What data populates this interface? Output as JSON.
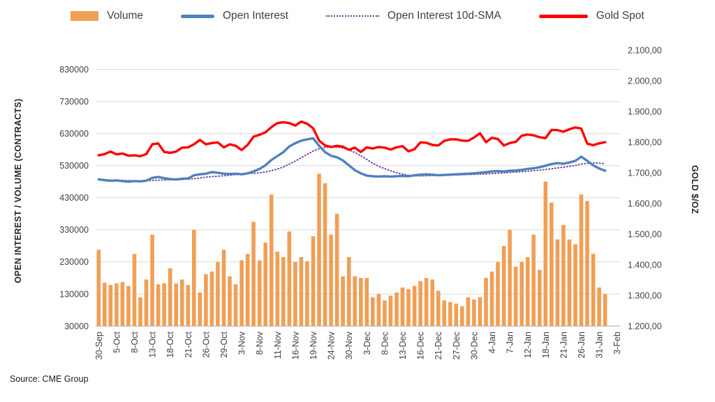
{
  "source_note": "Source: CME Group",
  "chart_data": {
    "type": "bar",
    "title": "",
    "ylabel_left": "OPEN INTEREST / VOLUME (CONTRACTS)",
    "ylabel_right": "GOLD $/OZ",
    "x_tick_step": 3,
    "grid": "horizontal",
    "legend_position": "top",
    "left_axis": {
      "min": 30000,
      "max": 890000,
      "ticks": [
        {
          "label": "30000",
          "value": 30000
        },
        {
          "label": "130000",
          "value": 130000
        },
        {
          "label": "230000",
          "value": 230000
        },
        {
          "label": "330000",
          "value": 330000
        },
        {
          "label": "430000",
          "value": 430000
        },
        {
          "label": "530000",
          "value": 530000
        },
        {
          "label": "630000",
          "value": 630000
        },
        {
          "label": "730000",
          "value": 730000
        },
        {
          "label": "830000",
          "value": 830000
        }
      ]
    },
    "right_axis": {
      "min": 1200,
      "max": 2100,
      "ticks": [
        {
          "label": "1.200,00",
          "value": 1200
        },
        {
          "label": "1.300,00",
          "value": 1300
        },
        {
          "label": "1.400,00",
          "value": 1400
        },
        {
          "label": "1.500,00",
          "value": 1500
        },
        {
          "label": "1.600,00",
          "value": 1600
        },
        {
          "label": "1.700,00",
          "value": 1700
        },
        {
          "label": "1.800,00",
          "value": 1800
        },
        {
          "label": "1.900,00",
          "value": 1900
        },
        {
          "label": "2.000,00",
          "value": 2000
        },
        {
          "label": "2.100,00",
          "value": 2100
        }
      ]
    },
    "dates": [
      "30-Sep",
      "1-Oct",
      "4-Oct",
      "5-Oct",
      "6-Oct",
      "7-Oct",
      "8-Oct",
      "11-Oct",
      "12-Oct",
      "13-Oct",
      "14-Oct",
      "15-Oct",
      "18-Oct",
      "19-Oct",
      "20-Oct",
      "21-Oct",
      "22-Oct",
      "25-Oct",
      "26-Oct",
      "27-Oct",
      "28-Oct",
      "29-Oct",
      "1-Nov",
      "2-Nov",
      "3-Nov",
      "4-Nov",
      "5-Nov",
      "8-Nov",
      "9-Nov",
      "10-Nov",
      "11-Nov",
      "12-Nov",
      "15-Nov",
      "16-Nov",
      "17-Nov",
      "18-Nov",
      "19-Nov",
      "22-Nov",
      "23-Nov",
      "24-Nov",
      "26-Nov",
      "29-Nov",
      "30-Nov",
      "1-Dec",
      "2-Dec",
      "3-Dec",
      "6-Dec",
      "7-Dec",
      "8-Dec",
      "9-Dec",
      "10-Dec",
      "13-Dec",
      "14-Dec",
      "15-Dec",
      "16-Dec",
      "17-Dec",
      "20-Dec",
      "21-Dec",
      "22-Dec",
      "23-Dec",
      "27-Dec",
      "28-Dec",
      "29-Dec",
      "30-Dec",
      "31-Dec",
      "3-Jan",
      "4-Jan",
      "5-Jan",
      "6-Jan",
      "7-Jan",
      "10-Jan",
      "11-Jan",
      "12-Jan",
      "13-Jan",
      "14-Jan",
      "18-Jan",
      "19-Jan",
      "20-Jan",
      "21-Jan",
      "24-Jan",
      "25-Jan",
      "26-Jan",
      "27-Jan",
      "28-Jan",
      "31-Jan",
      "1-Feb",
      "2-Feb",
      "3-Feb"
    ],
    "series": [
      {
        "name": "Volume",
        "type": "bar",
        "axis": "left",
        "color": "#F09F55",
        "values": [
          268000,
          165000,
          158000,
          163000,
          167000,
          155000,
          255000,
          120000,
          175000,
          315000,
          160000,
          163000,
          210000,
          162000,
          175000,
          158000,
          330000,
          135000,
          192000,
          200000,
          230000,
          268000,
          185000,
          160000,
          235000,
          255000,
          355000,
          235000,
          290000,
          440000,
          262000,
          245000,
          325000,
          230000,
          245000,
          232000,
          310000,
          505000,
          475000,
          315000,
          380000,
          185000,
          245000,
          185000,
          180000,
          180000,
          120000,
          130000,
          110000,
          125000,
          135000,
          150000,
          145000,
          155000,
          170000,
          180000,
          175000,
          140000,
          110000,
          105000,
          100000,
          92000,
          120000,
          113000,
          120000,
          180000,
          200000,
          230000,
          280000,
          330000,
          215000,
          230000,
          245000,
          315000,
          205000,
          480000,
          415000,
          300000,
          345000,
          300000,
          285000,
          440000,
          420000,
          255000,
          150000,
          130000,
          null,
          null
        ]
      },
      {
        "name": "Open Interest",
        "type": "line",
        "axis": "left",
        "color": "#4F81BD",
        "values": [
          487000,
          485000,
          483000,
          484000,
          482000,
          480000,
          482000,
          481000,
          483000,
          492000,
          495000,
          491000,
          488000,
          487000,
          489000,
          490000,
          500000,
          503000,
          505000,
          510000,
          508000,
          505000,
          504000,
          505000,
          503000,
          506000,
          512000,
          520000,
          531000,
          548000,
          560000,
          572000,
          590000,
          600000,
          608000,
          612000,
          615000,
          592000,
          572000,
          561000,
          556000,
          546000,
          531000,
          516000,
          506000,
          499000,
          497000,
          496000,
          497000,
          496000,
          497000,
          498000,
          497000,
          500000,
          502000,
          503000,
          502000,
          500000,
          501000,
          502000,
          503000,
          504000,
          505000,
          506000,
          508000,
          510000,
          512000,
          513000,
          512000,
          514000,
          515000,
          517000,
          520000,
          522000,
          525000,
          530000,
          535000,
          538000,
          536000,
          540000,
          545000,
          558000,
          545000,
          531000,
          521000,
          514000,
          null,
          null
        ]
      },
      {
        "name": "Open Interest 10d-SMA",
        "type": "line-dotted",
        "axis": "left",
        "color": "#7030A0",
        "derived_from": "Open Interest",
        "window": 10
      },
      {
        "name": "Gold Spot",
        "type": "line",
        "axis": "right",
        "color": "#FF0000",
        "values": [
          1757,
          1761,
          1769,
          1760,
          1763,
          1756,
          1757,
          1754,
          1761,
          1793,
          1796,
          1768,
          1765,
          1769,
          1782,
          1783,
          1793,
          1807,
          1793,
          1797,
          1799,
          1783,
          1793,
          1788,
          1774,
          1791,
          1818,
          1824,
          1832,
          1849,
          1862,
          1865,
          1862,
          1854,
          1867,
          1860,
          1845,
          1805,
          1789,
          1784,
          1788,
          1785,
          1775,
          1782,
          1768,
          1783,
          1779,
          1784,
          1782,
          1776,
          1783,
          1787,
          1770,
          1777,
          1799,
          1798,
          1791,
          1789,
          1804,
          1809,
          1809,
          1805,
          1804,
          1815,
          1829,
          1800,
          1814,
          1810,
          1789,
          1797,
          1801,
          1821,
          1825,
          1822,
          1816,
          1813,
          1840,
          1839,
          1834,
          1842,
          1848,
          1844,
          1795,
          1790,
          1796,
          1800,
          null,
          null
        ]
      }
    ]
  }
}
